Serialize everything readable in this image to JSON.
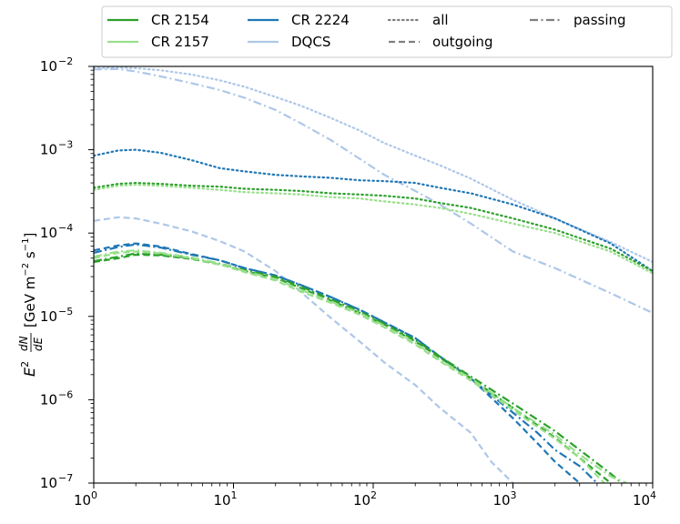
{
  "chart_data": {
    "type": "line",
    "title": "",
    "xscale": "log",
    "yscale": "log",
    "xlim": [
      1,
      10000
    ],
    "ylim": [
      1e-07,
      0.01
    ],
    "xlabel": "",
    "ylabel": {
      "prefix": "E",
      "prefix_sup": "2",
      "frac_num": "dN",
      "frac_den": "dE",
      "units_open": "[GeV m",
      "units_m_exp": "−2",
      "units_mid": " s",
      "units_s_exp": "−1",
      "units_close": "]"
    },
    "x_ticks": [
      {
        "value": 1,
        "base": "10",
        "exp": "0"
      },
      {
        "value": 10,
        "base": "10",
        "exp": "1"
      },
      {
        "value": 100,
        "base": "10",
        "exp": "2"
      },
      {
        "value": 1000,
        "base": "10",
        "exp": "3"
      },
      {
        "value": 10000,
        "base": "10",
        "exp": "4"
      }
    ],
    "y_ticks": [
      {
        "value": 1e-07,
        "base": "10",
        "exp": "−7"
      },
      {
        "value": 1e-06,
        "base": "10",
        "exp": "−6"
      },
      {
        "value": 1e-05,
        "base": "10",
        "exp": "−5"
      },
      {
        "value": 0.0001,
        "base": "10",
        "exp": "−4"
      },
      {
        "value": 0.001,
        "base": "10",
        "exp": "−3"
      },
      {
        "value": 0.01,
        "base": "10",
        "exp": "−2"
      }
    ],
    "legend": {
      "placement": "top",
      "columns": [
        [
          {
            "label": "CR 2154",
            "kind": "color",
            "color": "#2ca02c"
          },
          {
            "label": "CR 2157",
            "kind": "color",
            "color": "#98df8a"
          }
        ],
        [
          {
            "label": "CR 2224",
            "kind": "color",
            "color": "#1f77b4"
          },
          {
            "label": "DQCS",
            "kind": "color",
            "color": "#aec7e8"
          }
        ],
        [
          {
            "label": "all",
            "kind": "style",
            "style": "dotted"
          },
          {
            "label": "outgoing",
            "kind": "style",
            "style": "dashed"
          }
        ],
        [
          {
            "label": "passing",
            "kind": "style",
            "style": "dashdot"
          }
        ]
      ]
    },
    "series": [
      {
        "name": "DQCS all",
        "color": "#aec7e8",
        "style": "dotted",
        "x": [
          1,
          1.5,
          2,
          3,
          5,
          8,
          12,
          20,
          30,
          50,
          80,
          120,
          200,
          300,
          500,
          1000,
          2000,
          5000,
          10000
        ],
        "y": [
          0.0095,
          0.0097,
          0.0095,
          0.009,
          0.008,
          0.0068,
          0.0057,
          0.0043,
          0.0034,
          0.0024,
          0.0017,
          0.0012,
          0.00085,
          0.00065,
          0.00045,
          0.00025,
          0.00015,
          7.8e-05,
          4.5e-05
        ]
      },
      {
        "name": "DQCS passing",
        "color": "#aec7e8",
        "style": "dashdot",
        "x": [
          1,
          1.5,
          2,
          3,
          5,
          8,
          12,
          20,
          30,
          50,
          80,
          120,
          200,
          300,
          500,
          1000,
          2000,
          5000,
          10000
        ],
        "y": [
          0.0092,
          0.0093,
          0.0087,
          0.0076,
          0.0063,
          0.0052,
          0.0042,
          0.003,
          0.0021,
          0.0013,
          0.00078,
          0.0005,
          0.00032,
          0.00022,
          0.00013,
          6e-05,
          3.8e-05,
          1.9e-05,
          1.1e-05
        ]
      },
      {
        "name": "DQCS outgoing",
        "color": "#aec7e8",
        "style": "dashed",
        "x": [
          1,
          1.5,
          2,
          3,
          5,
          8,
          12,
          20,
          30,
          50,
          80,
          120,
          200,
          300,
          500,
          700,
          1000
        ],
        "y": [
          0.00014,
          0.000155,
          0.00015,
          0.00013,
          0.000105,
          8e-05,
          6e-05,
          3.5e-05,
          2e-05,
          9.5e-06,
          5e-06,
          2.8e-06,
          1.5e-06,
          8e-07,
          4e-07,
          1.8e-07,
          1e-07
        ]
      },
      {
        "name": "CR 2224 all",
        "color": "#1f77b4",
        "style": "dotted",
        "x": [
          1,
          1.5,
          2,
          3,
          5,
          8,
          12,
          20,
          30,
          50,
          80,
          120,
          200,
          300,
          500,
          1000,
          2000,
          5000,
          10000
        ],
        "y": [
          0.00085,
          0.00098,
          0.001,
          0.00092,
          0.00075,
          0.0006,
          0.00055,
          0.0005,
          0.00048,
          0.00046,
          0.00043,
          0.00042,
          0.0004,
          0.00035,
          0.0003,
          0.00022,
          0.00015,
          7.5e-05,
          3.5e-05
        ]
      },
      {
        "name": "CR 2154 all",
        "color": "#2ca02c",
        "style": "dotted",
        "x": [
          1,
          1.5,
          2,
          3,
          5,
          8,
          12,
          20,
          30,
          50,
          80,
          120,
          200,
          300,
          500,
          1000,
          2000,
          5000,
          10000
        ],
        "y": [
          0.00035,
          0.00039,
          0.0004,
          0.00039,
          0.00037,
          0.00036,
          0.00034,
          0.00033,
          0.00032,
          0.0003,
          0.00029,
          0.00028,
          0.00026,
          0.00023,
          0.0002,
          0.00015,
          0.00011,
          6.5e-05,
          3.5e-05
        ]
      },
      {
        "name": "CR 2157 all",
        "color": "#98df8a",
        "style": "dotted",
        "x": [
          1,
          1.5,
          2,
          3,
          5,
          8,
          12,
          20,
          30,
          50,
          80,
          120,
          200,
          300,
          500,
          1000,
          2000,
          5000,
          10000
        ],
        "y": [
          0.00033,
          0.00037,
          0.00038,
          0.00037,
          0.00035,
          0.00033,
          0.00031,
          0.0003,
          0.00029,
          0.00027,
          0.00026,
          0.00024,
          0.00022,
          0.0002,
          0.00017,
          0.00013,
          0.0001,
          6e-05,
          3.3e-05
        ]
      },
      {
        "name": "CR 2224 passing",
        "color": "#1f77b4",
        "style": "dashdot",
        "x": [
          1,
          1.5,
          2,
          3,
          5,
          8,
          12,
          20,
          30,
          50,
          80,
          120,
          200,
          300,
          500,
          1000,
          1500,
          2000,
          3000,
          4000
        ],
        "y": [
          5.8e-05,
          6.8e-05,
          7.3e-05,
          6.7e-05,
          5.5e-05,
          4.7e-05,
          3.8e-05,
          3.1e-05,
          2.4e-05,
          1.7e-05,
          1.2e-05,
          8.5e-06,
          5.5e-06,
          3.3e-06,
          1.8e-06,
          7e-07,
          4e-07,
          2.5e-07,
          1.6e-07,
          1e-07
        ]
      },
      {
        "name": "CR 2224 outgoing",
        "color": "#1f77b4",
        "style": "dashed",
        "x": [
          1,
          1.5,
          2,
          3,
          5,
          8,
          12,
          20,
          30,
          50,
          80,
          120,
          200,
          300,
          500,
          1000,
          1500,
          2000,
          3000
        ],
        "y": [
          6.2e-05,
          7.1e-05,
          7.5e-05,
          6.9e-05,
          5.6e-05,
          4.7e-05,
          3.8e-05,
          3.1e-05,
          2.4e-05,
          1.7e-05,
          1.2e-05,
          8.5e-06,
          5.5e-06,
          3.3e-06,
          1.8e-06,
          6e-07,
          3e-07,
          1.8e-07,
          1e-07
        ]
      },
      {
        "name": "CR 2154 passing",
        "color": "#2ca02c",
        "style": "dashdot",
        "x": [
          1,
          1.5,
          2,
          3,
          5,
          8,
          12,
          20,
          30,
          50,
          80,
          120,
          200,
          300,
          500,
          1000,
          2000,
          3000,
          5000,
          6000
        ],
        "y": [
          4.6e-05,
          5.2e-05,
          5.7e-05,
          5.5e-05,
          5e-05,
          4.3e-05,
          3.6e-05,
          3e-05,
          2.3e-05,
          1.6e-05,
          1.15e-05,
          8.2e-06,
          5.2e-06,
          3.3e-06,
          1.9e-06,
          9e-07,
          4.2e-07,
          2.5e-07,
          1.3e-07,
          1e-07
        ]
      },
      {
        "name": "CR 2154 outgoing",
        "color": "#2ca02c",
        "style": "dashed",
        "x": [
          1,
          1.5,
          2,
          3,
          5,
          8,
          12,
          20,
          30,
          50,
          80,
          120,
          200,
          300,
          500,
          1000,
          2000,
          3000,
          5000
        ],
        "y": [
          4.5e-05,
          5e-05,
          5.5e-05,
          5.4e-05,
          4.9e-05,
          4.2e-05,
          3.5e-05,
          2.9e-05,
          2.2e-05,
          1.55e-05,
          1.1e-05,
          8e-06,
          5e-06,
          3.2e-06,
          1.8e-06,
          8e-07,
          3.5e-07,
          2e-07,
          1e-07
        ]
      },
      {
        "name": "CR 2157 passing",
        "color": "#98df8a",
        "style": "dashdot",
        "x": [
          1,
          1.5,
          2,
          3,
          5,
          8,
          12,
          20,
          30,
          50,
          80,
          120,
          200,
          300,
          500,
          1000,
          2000,
          3000,
          5000,
          6500
        ],
        "y": [
          5.2e-05,
          6e-05,
          6.2e-05,
          5.8e-05,
          5.1e-05,
          4.3e-05,
          3.5e-05,
          2.8e-05,
          2.1e-05,
          1.5e-05,
          1.1e-05,
          7.7e-06,
          4.8e-06,
          3e-06,
          1.8e-06,
          8e-07,
          3.8e-07,
          2.2e-07,
          1.2e-07,
          1e-07
        ]
      },
      {
        "name": "CR 2157 outgoing",
        "color": "#98df8a",
        "style": "dashed",
        "x": [
          1,
          1.5,
          2,
          3,
          5,
          8,
          12,
          20,
          30,
          50,
          80,
          120,
          200,
          300,
          500,
          1000,
          2000,
          3000,
          4500
        ],
        "y": [
          5e-05,
          5.8e-05,
          6e-05,
          5.7e-05,
          5e-05,
          4.2e-05,
          3.4e-05,
          2.7e-05,
          2e-05,
          1.45e-05,
          1.05e-05,
          7.4e-06,
          4.6e-06,
          2.9e-06,
          1.7e-06,
          7.5e-07,
          3.4e-07,
          2e-07,
          1e-07
        ]
      }
    ]
  }
}
